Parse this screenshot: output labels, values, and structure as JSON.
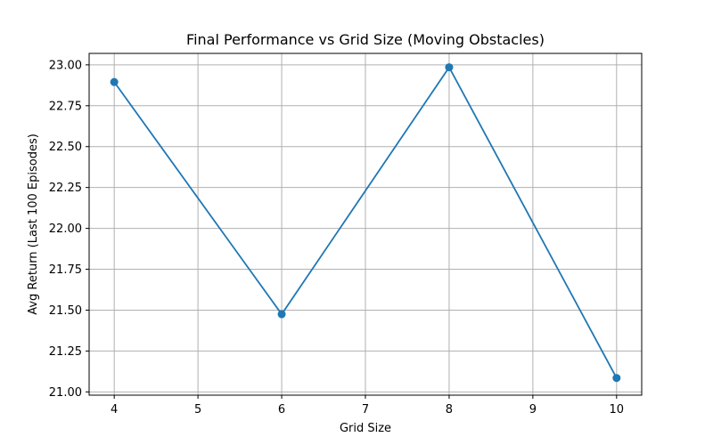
{
  "chart_data": {
    "type": "line",
    "title": "Final Performance vs Grid Size (Moving Obstacles)",
    "xlabel": "Grid Size",
    "ylabel": "Avg Return (Last 100 Episodes)",
    "x": [
      4,
      6,
      8,
      10
    ],
    "series": [
      {
        "values": [
          22.895,
          21.475,
          22.985,
          21.085
        ],
        "color": "#1f77b4"
      }
    ],
    "xlim": [
      3.7,
      10.3
    ],
    "ylim": [
      20.98,
      23.07
    ],
    "xticks": [
      4,
      5,
      6,
      7,
      8,
      9,
      10
    ],
    "yticks": [
      21.0,
      21.25,
      21.5,
      21.75,
      22.0,
      22.25,
      22.5,
      22.75,
      23.0
    ],
    "ytick_format": "2dp",
    "grid": true,
    "marker": "circle"
  }
}
